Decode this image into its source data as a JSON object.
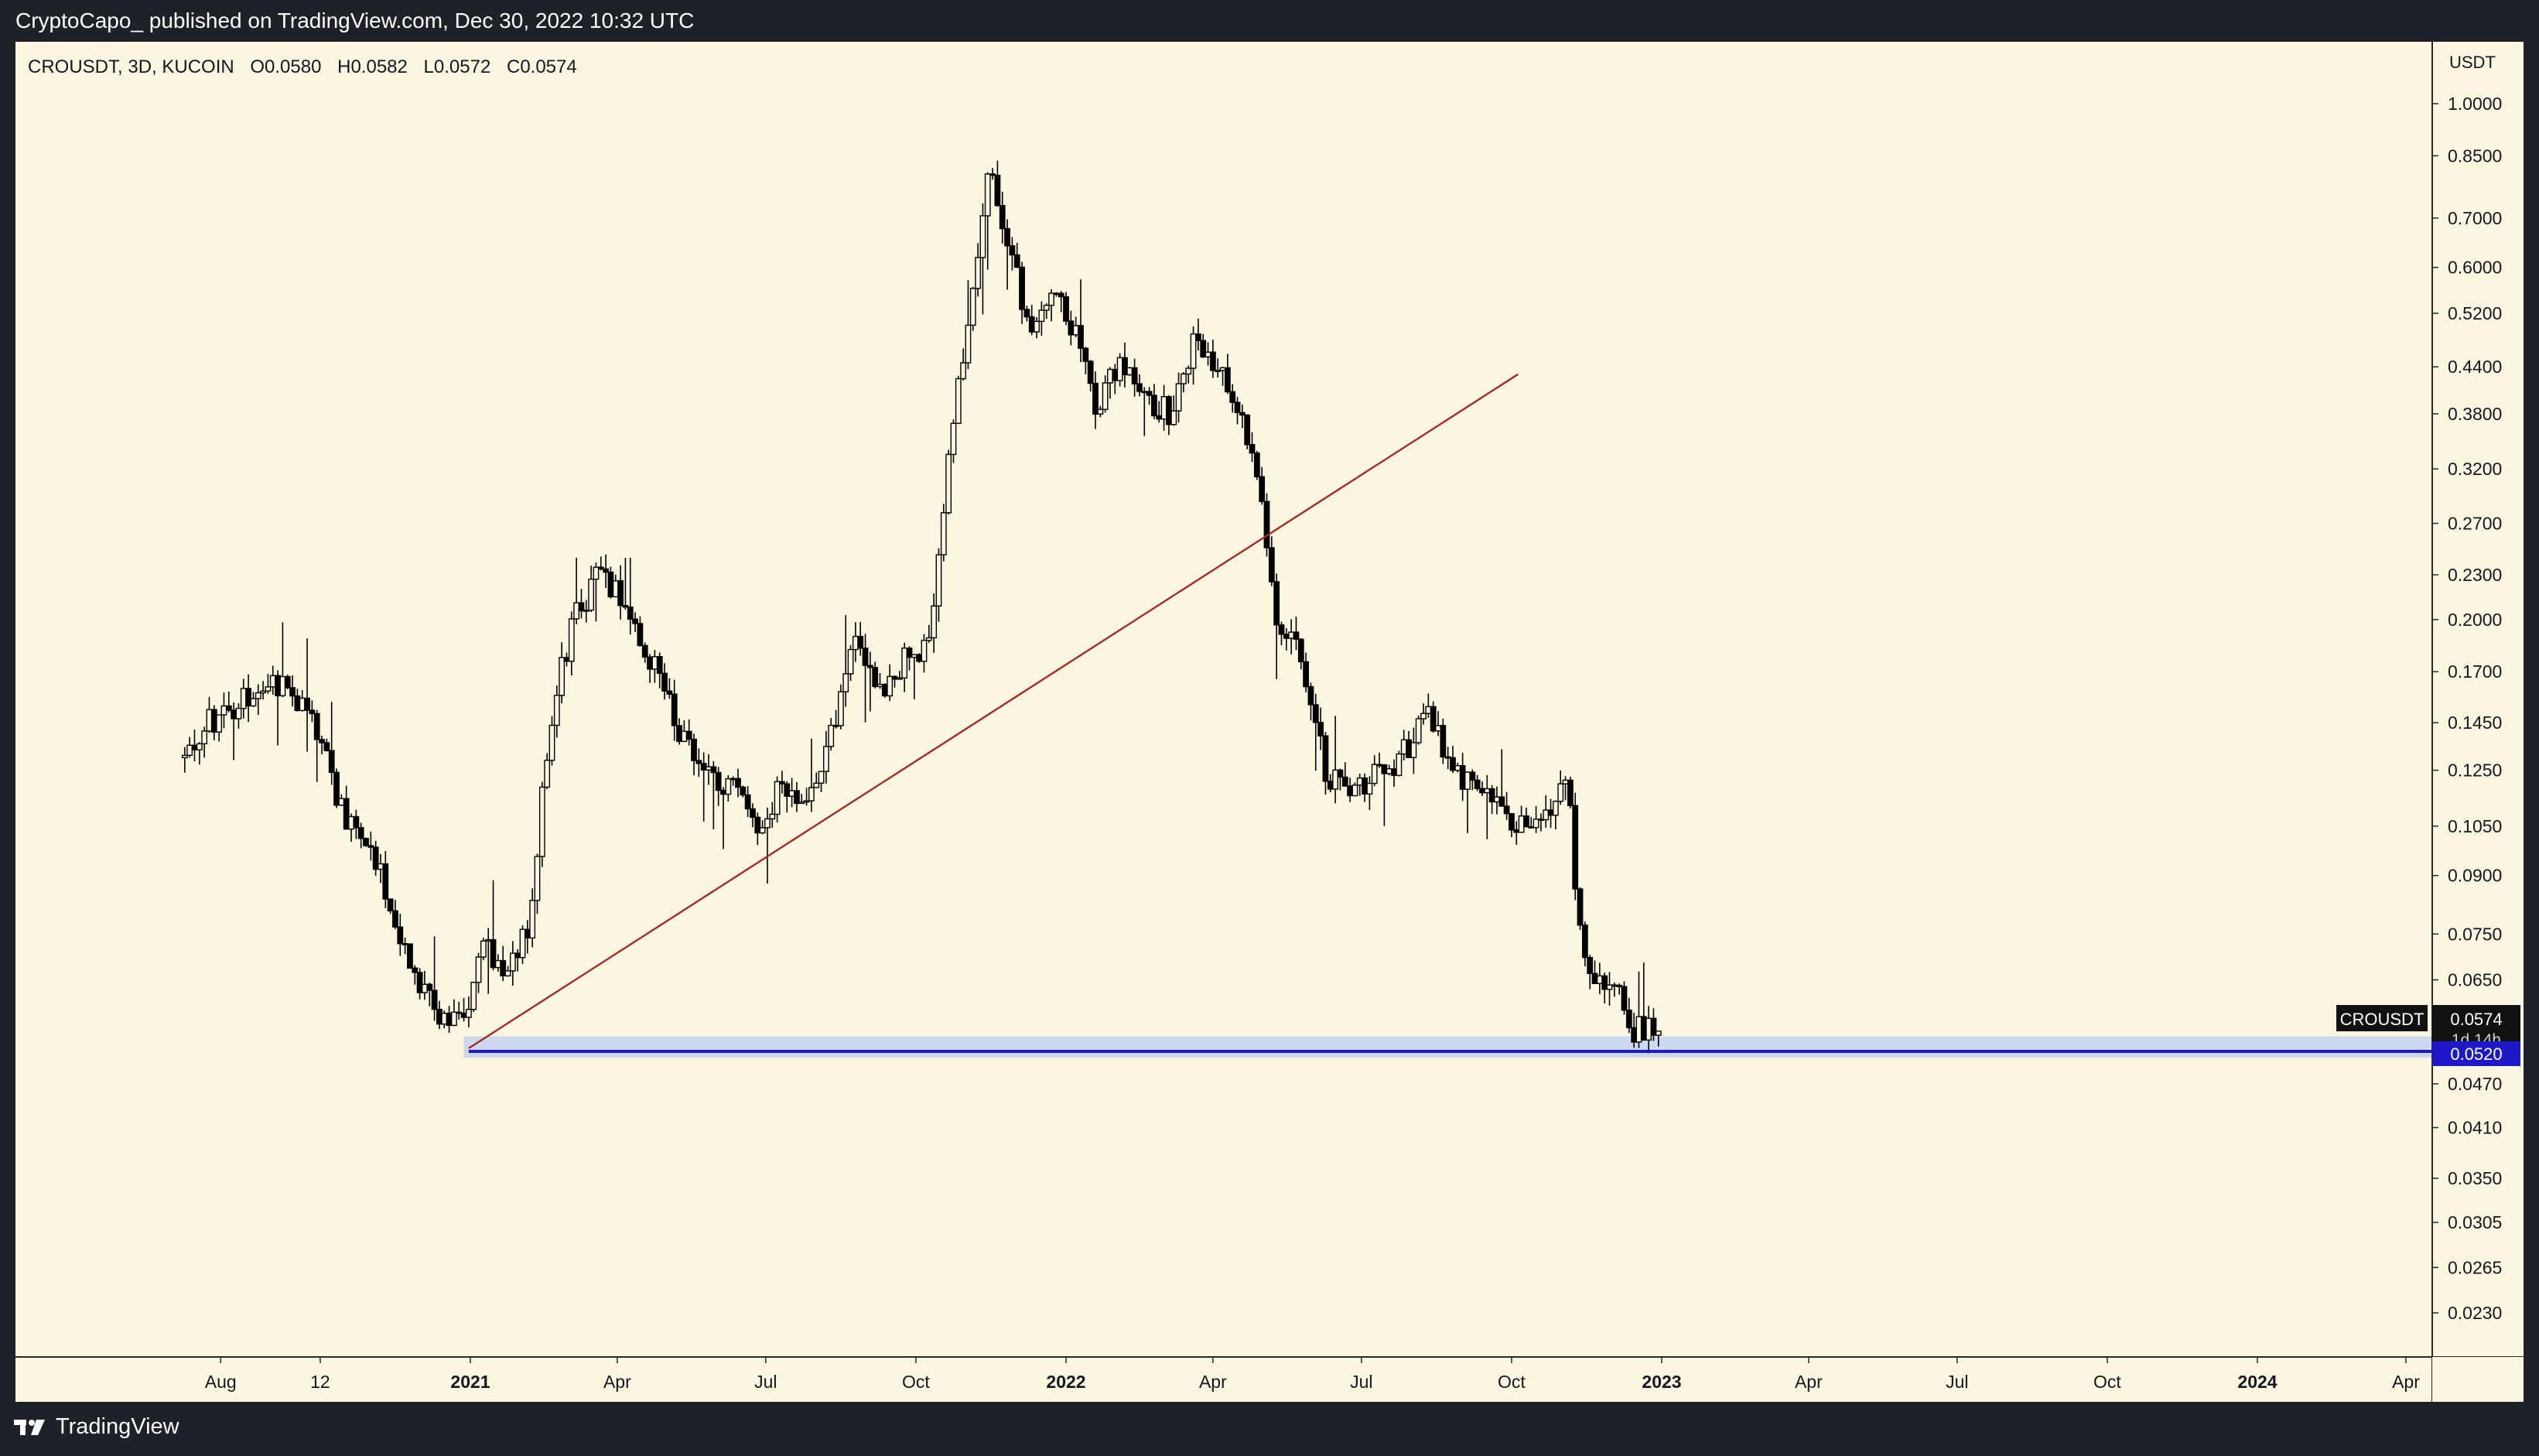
{
  "header": {
    "published": "CryptoCapo_ published on TradingView.com, Dec 30, 2022 10:32 UTC"
  },
  "footer": {
    "brand": "TradingView",
    "logo_icon": "tradingview-logo-icon"
  },
  "symbol_info": {
    "text": "CROUSDT, 3D, KUCOIN",
    "open": "O0.0580",
    "high": "H0.0582",
    "low": "L0.0572",
    "close": "C0.0574"
  },
  "chart_data": {
    "type": "candlestick",
    "symbol": "CROUSDT",
    "interval": "3D",
    "exchange": "KUCOIN",
    "y_scale": "log",
    "y_unit_label": "USDT",
    "y_ticks": [
      "1.0000",
      "0.8500",
      "0.7000",
      "0.6000",
      "0.5200",
      "0.4400",
      "0.3800",
      "0.3200",
      "0.2700",
      "0.2300",
      "0.2000",
      "0.1700",
      "0.1450",
      "0.1250",
      "0.1050",
      "0.0900",
      "0.0750",
      "0.0650",
      "0.0470",
      "0.0410",
      "0.0350",
      "0.0305",
      "0.0265",
      "0.0230"
    ],
    "x_ticks": [
      {
        "label": "Aug",
        "bold": false
      },
      {
        "label": "12",
        "bold": false
      },
      {
        "label": "2021",
        "bold": true
      },
      {
        "label": "Apr",
        "bold": false
      },
      {
        "label": "Jul",
        "bold": false
      },
      {
        "label": "Oct",
        "bold": false
      },
      {
        "label": "2022",
        "bold": true
      },
      {
        "label": "Apr",
        "bold": false
      },
      {
        "label": "Jul",
        "bold": false
      },
      {
        "label": "Oct",
        "bold": false
      },
      {
        "label": "2023",
        "bold": true
      },
      {
        "label": "Apr",
        "bold": false
      },
      {
        "label": "Jul",
        "bold": false
      },
      {
        "label": "Oct",
        "bold": false
      },
      {
        "label": "2024",
        "bold": true
      },
      {
        "label": "Apr",
        "bold": false
      }
    ],
    "series": [
      {
        "name": "CROUSDT",
        "approx_path": [
          [
            "2020-07-10",
            0.13
          ],
          [
            "2020-07-25",
            0.145
          ],
          [
            "2020-08-20",
            0.16
          ],
          [
            "2020-09-05",
            0.165
          ],
          [
            "2020-09-25",
            0.15
          ],
          [
            "2020-10-15",
            0.11
          ],
          [
            "2020-11-05",
            0.095
          ],
          [
            "2020-11-25",
            0.068
          ],
          [
            "2020-12-15",
            0.058
          ],
          [
            "2020-12-31",
            0.057
          ],
          [
            "2021-01-10",
            0.075
          ],
          [
            "2021-01-20",
            0.065
          ],
          [
            "2021-02-05",
            0.075
          ],
          [
            "2021-02-20",
            0.15
          ],
          [
            "2021-03-05",
            0.2
          ],
          [
            "2021-03-20",
            0.23
          ],
          [
            "2021-04-05",
            0.21
          ],
          [
            "2021-04-20",
            0.18
          ],
          [
            "2021-05-05",
            0.15
          ],
          [
            "2021-05-20",
            0.125
          ],
          [
            "2021-06-10",
            0.12
          ],
          [
            "2021-06-25",
            0.103
          ],
          [
            "2021-07-10",
            0.12
          ],
          [
            "2021-07-25",
            0.115
          ],
          [
            "2021-08-10",
            0.14
          ],
          [
            "2021-08-25",
            0.19
          ],
          [
            "2021-09-10",
            0.16
          ],
          [
            "2021-09-25",
            0.18
          ],
          [
            "2021-10-10",
            0.185
          ],
          [
            "2021-10-25",
            0.4
          ],
          [
            "2021-11-05",
            0.55
          ],
          [
            "2021-11-15",
            0.8
          ],
          [
            "2021-11-25",
            0.65
          ],
          [
            "2021-12-10",
            0.5
          ],
          [
            "2021-12-25",
            0.58
          ],
          [
            "2022-01-05",
            0.5
          ],
          [
            "2022-01-20",
            0.39
          ],
          [
            "2022-02-05",
            0.45
          ],
          [
            "2022-02-20",
            0.4
          ],
          [
            "2022-03-05",
            0.38
          ],
          [
            "2022-03-20",
            0.47
          ],
          [
            "2022-04-01",
            0.45
          ],
          [
            "2022-04-15",
            0.4
          ],
          [
            "2022-05-01",
            0.29
          ],
          [
            "2022-05-10",
            0.2
          ],
          [
            "2022-05-25",
            0.18
          ],
          [
            "2022-06-10",
            0.123
          ],
          [
            "2022-06-25",
            0.115
          ],
          [
            "2022-07-10",
            0.125
          ],
          [
            "2022-07-25",
            0.13
          ],
          [
            "2022-08-10",
            0.15
          ],
          [
            "2022-08-25",
            0.128
          ],
          [
            "2022-09-10",
            0.116
          ],
          [
            "2022-09-25",
            0.11
          ],
          [
            "2022-10-10",
            0.105
          ],
          [
            "2022-10-25",
            0.11
          ],
          [
            "2022-11-05",
            0.119
          ],
          [
            "2022-11-10",
            0.078
          ],
          [
            "2022-11-20",
            0.064
          ],
          [
            "2022-12-05",
            0.063
          ],
          [
            "2022-12-15",
            0.055
          ],
          [
            "2022-12-30",
            0.0574
          ]
        ]
      }
    ],
    "last_price": {
      "symbol_tag": "CROUSDT",
      "value": "0.0574",
      "countdown": "1d 14h"
    },
    "horizontal_line": {
      "value": "0.0520",
      "color": "#1e18c8"
    },
    "support_zone": {
      "top": 0.0545,
      "bottom": 0.051,
      "color": "#cdd9ee"
    },
    "trend_line": {
      "from": [
        "2020-12-31",
        0.0525
      ],
      "to": [
        "2022-10-05",
        0.43
      ],
      "color": "#a52a2a"
    }
  },
  "colors": {
    "background": "#fbf6df",
    "candle": "#000000",
    "trend_line": "#a52a2a",
    "level_line": "#1e18c8",
    "frame": "#1f2128"
  }
}
